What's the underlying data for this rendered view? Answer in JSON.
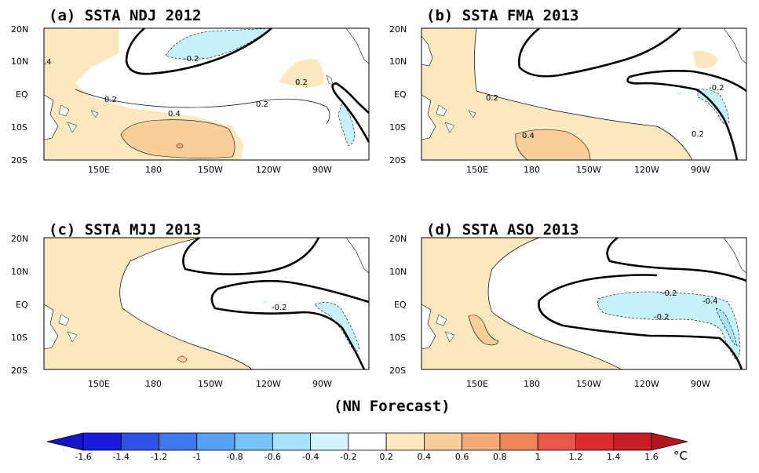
{
  "panels": [
    {
      "id": "a",
      "title": "(a) SSTA  NDJ 2012"
    },
    {
      "id": "b",
      "title": "(b) SSTA  FMA 2013"
    },
    {
      "id": "c",
      "title": "(c) SSTA  MJJ 2013"
    },
    {
      "id": "d",
      "title": "(d) SSTA  ASO 2013"
    }
  ],
  "lat_ticks": [
    "20N",
    "10N",
    "EQ",
    "10S",
    "20S"
  ],
  "lon_ticks": [
    "150E",
    "180",
    "150W",
    "120W",
    "90W"
  ],
  "contour_labels": {
    "a": [
      "-0.2",
      "0.2",
      "0.2",
      "0.2",
      "0.4",
      ".4"
    ],
    "b": [
      "0.2",
      "0.4",
      "-0.2",
      "0.2"
    ],
    "c": [
      "-0.2"
    ],
    "d": [
      "-0.2",
      "-0.4",
      "-0.2"
    ]
  },
  "footer": "(NN Forecast)",
  "colorbar": {
    "ticks": [
      "-1.6",
      "-1.4",
      "-1.2",
      "-1",
      "-0.8",
      "-0.6",
      "-0.4",
      "-0.2",
      "0.2",
      "0.4",
      "0.6",
      "0.8",
      "1",
      "1.2",
      "1.4",
      "1.6"
    ],
    "unit": "°C",
    "colors": [
      "#1a1adc",
      "#2e52e6",
      "#3f78ee",
      "#58a0f4",
      "#78c4f8",
      "#a8e2fa",
      "#d2f4fa",
      "#ffffff",
      "#fbe8be",
      "#f8cf9a",
      "#f4ab78",
      "#f0845a",
      "#e85848",
      "#dc2c30",
      "#c81e2a"
    ],
    "low_end_color": "#1414c8",
    "high_end_color": "#b4161e"
  },
  "colors": {
    "warm1": "#fbe8be",
    "warm2": "#f8cf9a",
    "cool1": "#c8f2fa",
    "land": "#ffffff"
  }
}
